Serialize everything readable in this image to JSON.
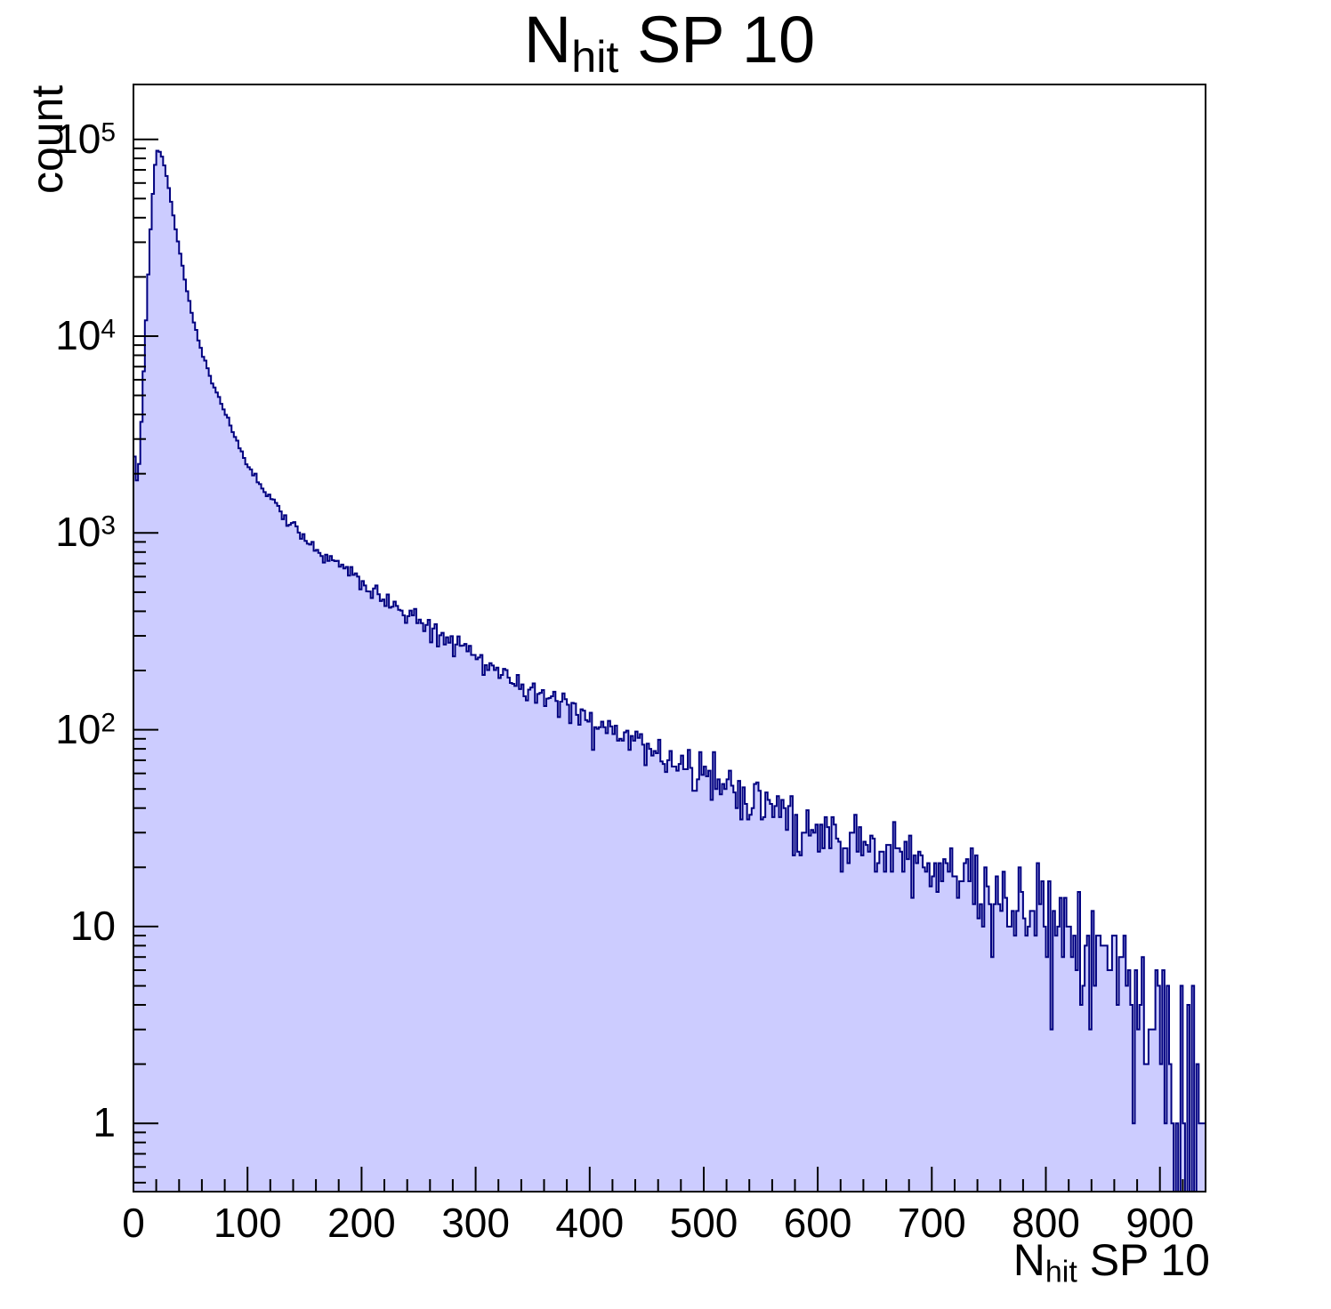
{
  "chart_data": {
    "type": "histogram",
    "title": "N_hit SP 10",
    "title_parts": {
      "main": "N",
      "sub": "hit",
      "rest": " SP 10"
    },
    "xlabel": "N_hit SP 10",
    "xlabel_parts": {
      "main": "N",
      "sub": "hit",
      "rest": " SP 10"
    },
    "ylabel": "count",
    "y_scale": "log",
    "grid": false,
    "legend": "none",
    "x_range": [
      0,
      940
    ],
    "y_range": [
      0.45,
      190000
    ],
    "bin_width": 2,
    "x_major_ticks": [
      0,
      100,
      200,
      300,
      400,
      500,
      600,
      700,
      800,
      900
    ],
    "x_minor_step": 20,
    "y_major_ticks": [
      1,
      10,
      100,
      1000,
      10000,
      100000
    ],
    "y_tick_labels": [
      "1",
      "10",
      "10^2",
      "10^3",
      "10^4",
      "10^5"
    ],
    "peak": {
      "x": 20,
      "count": 88000
    },
    "envelope": [
      [
        0,
        2800
      ],
      [
        4,
        1600
      ],
      [
        8,
        5000
      ],
      [
        12,
        16000
      ],
      [
        16,
        45000
      ],
      [
        20,
        88000
      ],
      [
        24,
        86000
      ],
      [
        28,
        70000
      ],
      [
        32,
        52000
      ],
      [
        36,
        38000
      ],
      [
        40,
        28000
      ],
      [
        46,
        18000
      ],
      [
        52,
        12500
      ],
      [
        60,
        8200
      ],
      [
        70,
        5600
      ],
      [
        80,
        4100
      ],
      [
        90,
        3000
      ],
      [
        100,
        2200
      ],
      [
        110,
        1800
      ],
      [
        120,
        1500
      ],
      [
        130,
        1250
      ],
      [
        140,
        1080
      ],
      [
        150,
        950
      ],
      [
        160,
        840
      ],
      [
        170,
        750
      ],
      [
        180,
        680
      ],
      [
        190,
        620
      ],
      [
        200,
        565
      ],
      [
        220,
        470
      ],
      [
        240,
        395
      ],
      [
        260,
        330
      ],
      [
        280,
        278
      ],
      [
        300,
        235
      ],
      [
        320,
        200
      ],
      [
        340,
        172
      ],
      [
        360,
        148
      ],
      [
        380,
        129
      ],
      [
        400,
        113
      ],
      [
        420,
        99
      ],
      [
        440,
        88
      ],
      [
        460,
        77
      ],
      [
        480,
        68
      ],
      [
        500,
        60
      ],
      [
        520,
        53
      ],
      [
        540,
        47
      ],
      [
        560,
        42
      ],
      [
        580,
        37
      ],
      [
        600,
        33
      ],
      [
        620,
        29
      ],
      [
        640,
        26
      ],
      [
        660,
        24
      ],
      [
        680,
        21
      ],
      [
        700,
        19
      ],
      [
        720,
        17
      ],
      [
        740,
        15
      ],
      [
        760,
        13.5
      ],
      [
        780,
        12
      ],
      [
        800,
        10.5
      ],
      [
        820,
        9
      ],
      [
        840,
        7.5
      ],
      [
        860,
        6
      ],
      [
        880,
        4.6
      ],
      [
        900,
        3.4
      ],
      [
        920,
        2.2
      ],
      [
        940,
        1.3
      ]
    ],
    "colors": {
      "fill": "#ccccff",
      "line": "#000080",
      "axis": "#000000",
      "text": "#000000"
    }
  }
}
